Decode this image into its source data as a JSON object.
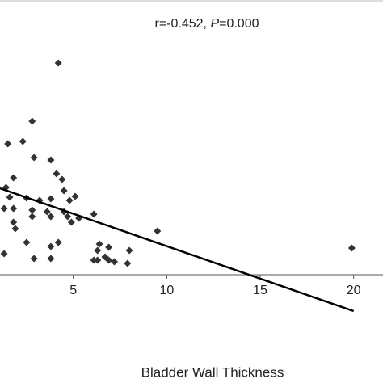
{
  "chart_data": {
    "type": "scatter",
    "annotation": [
      "r=-0.452, ",
      "P",
      "=0.000"
    ],
    "x_label": "Bladder Wall Thickness",
    "xlim": [
      1.08,
      21.57
    ],
    "xticks": [
      5,
      10,
      15,
      20
    ],
    "ylim": [
      -5.5,
      34
    ],
    "color": "#333333",
    "x": [
      4.2,
      2.8,
      2.3,
      1.5,
      2.9,
      3.8,
      4.1,
      1.8,
      4.4,
      1.4,
      4.5,
      1.6,
      2.5,
      3.8,
      5.1,
      4.8,
      3.2,
      1.3,
      1.8,
      2.8,
      3.6,
      4.5,
      4.7,
      5.3,
      6.1,
      3.8,
      2.8,
      1.8,
      4.9,
      9.5,
      1.9,
      2.5,
      4.2,
      1.3,
      3.8,
      6.4,
      6.3,
      6.9,
      8.0,
      19.9,
      2.9,
      6.3,
      6.9,
      3.8,
      6.1,
      7.2,
      7.9,
      6.7
    ],
    "values": [
      26.2,
      19,
      16.5,
      16.2,
      14.5,
      14.2,
      12.5,
      12,
      11.8,
      10.8,
      10.4,
      9.6,
      9.5,
      9.4,
      9.7,
      9.2,
      9.2,
      8.2,
      8.2,
      8,
      7.8,
      7.8,
      7.2,
      7,
      7.5,
      7.2,
      7.2,
      6.5,
      6.5,
      5.4,
      5.7,
      4,
      4,
      2.6,
      3.5,
      3.8,
      3,
      3.4,
      3,
      3.3,
      2,
      1.8,
      1.8,
      2,
      1.8,
      1.6,
      1.4,
      2.2
    ],
    "fit_line": {
      "color": "#000000",
      "x": [
        1.08,
        20
      ],
      "values": [
        10.7,
        -4.5
      ]
    }
  }
}
